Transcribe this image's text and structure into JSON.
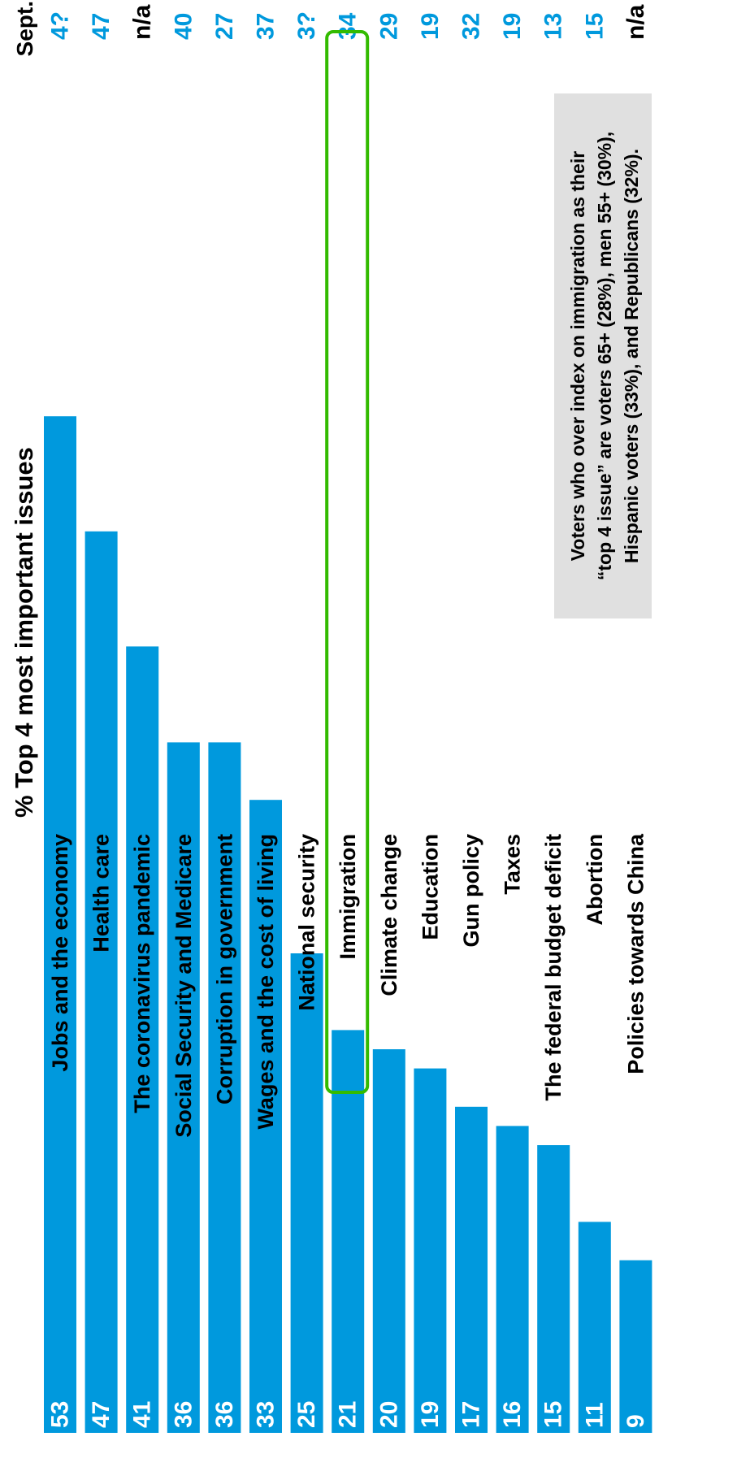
{
  "chart_data": {
    "type": "bar",
    "orientation": "horizontal",
    "title": "% Top 4 most important issues",
    "comparison_header": "Sept.",
    "categories": [
      "Jobs and the economy",
      "Health care",
      "The coronavirus pandemic",
      "Social Security and Medicare",
      "Corruption in government",
      "Wages and the cost of living",
      "National security",
      "Immigration",
      "Climate change",
      "Education",
      "Gun policy",
      "Taxes",
      "The federal budget deficit",
      "Abortion",
      "Policies towards China"
    ],
    "values": [
      53,
      47,
      41,
      36,
      36,
      33,
      25,
      21,
      20,
      19,
      17,
      16,
      15,
      11,
      9
    ],
    "sept_values": [
      "4?",
      "47",
      "n/a",
      "40",
      "27",
      "37",
      "3?",
      "34",
      "29",
      "19",
      "32",
      "19",
      "13",
      "15",
      "n/a"
    ],
    "xlim": [
      0,
      55
    ],
    "grid": false,
    "highlight_category": "Immigration",
    "note_lines": [
      "Voters who over index on immigration as their",
      "“top 4 issue” are voters 65+ (28%), men 55+ (30%),",
      "Hispanic voters (33%), and Republicans (32%)."
    ],
    "colors": {
      "bar": "#0099dd",
      "value_text": "#ffffff",
      "sept_text": "#0099dd",
      "sept_na_text": "#000000",
      "highlight_border": "#33bb00",
      "note_bg": "#e0e0e0"
    }
  }
}
